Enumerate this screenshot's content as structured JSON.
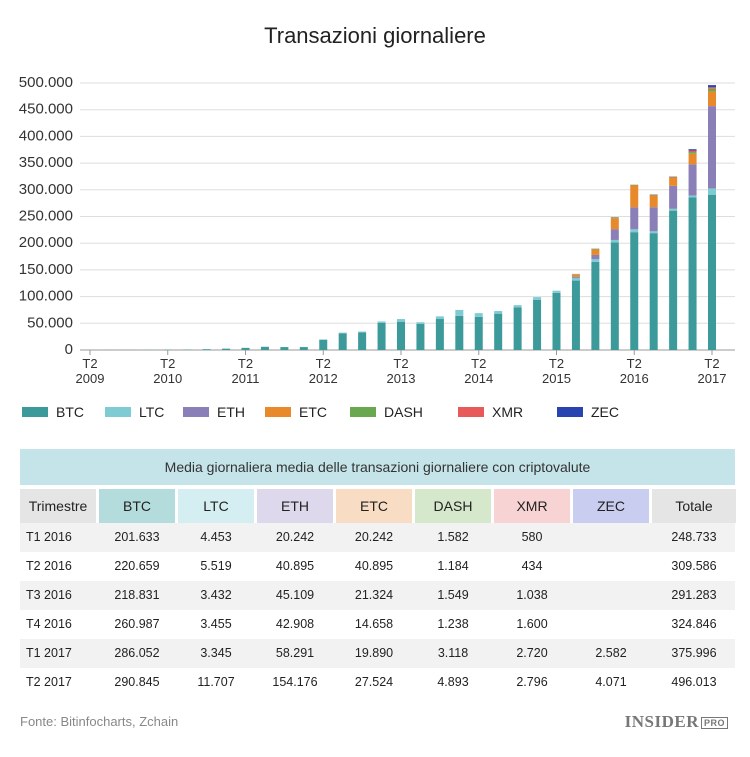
{
  "chart_data": {
    "type": "stacked_bar",
    "title": "Transazioni giornaliere",
    "categories": [
      "T2 2009",
      null,
      null,
      null,
      "T2 2010",
      null,
      null,
      null,
      "T2 2011",
      null,
      null,
      null,
      "T2 2012",
      null,
      null,
      null,
      "T2 2013",
      null,
      null,
      null,
      "T2 2014",
      null,
      null,
      null,
      "T2 2015",
      null,
      null,
      null,
      "T2 2016",
      null,
      null,
      null,
      "T2 2017"
    ],
    "series": [
      {
        "name": "BTC",
        "color": "#3c9a9a",
        "values": [
          100,
          150,
          200,
          300,
          500,
          800,
          1500,
          2500,
          4000,
          6000,
          5500,
          5500,
          19000,
          31000,
          33000,
          51000,
          53000,
          49000,
          58000,
          64000,
          62000,
          68000,
          80000,
          94000,
          107000,
          130000,
          165000,
          201633,
          220659,
          218831,
          260987,
          286052,
          290845
        ]
      },
      {
        "name": "LTC",
        "color": "#7fcbd3",
        "values": [
          null,
          null,
          null,
          null,
          null,
          null,
          null,
          null,
          null,
          null,
          100,
          300,
          1000,
          1500,
          1500,
          2500,
          5000,
          3000,
          5000,
          11000,
          7000,
          5000,
          4000,
          5000,
          4000,
          5000,
          5000,
          4453,
          5519,
          3432,
          3455,
          3345,
          11707
        ]
      },
      {
        "name": "ETH",
        "color": "#8a7fb6",
        "values": [
          null,
          null,
          null,
          null,
          null,
          null,
          null,
          null,
          null,
          null,
          null,
          null,
          null,
          null,
          null,
          null,
          null,
          null,
          null,
          null,
          null,
          null,
          null,
          null,
          null,
          2000,
          8000,
          20242,
          40895,
          45109,
          42908,
          58291,
          154176
        ]
      },
      {
        "name": "ETC",
        "color": "#e8892b",
        "values": [
          null,
          null,
          null,
          null,
          null,
          null,
          null,
          null,
          null,
          null,
          null,
          null,
          null,
          null,
          null,
          null,
          null,
          null,
          null,
          null,
          null,
          null,
          null,
          null,
          null,
          4000,
          10000,
          20242,
          40895,
          21324,
          14658,
          19890,
          27524
        ]
      },
      {
        "name": "DASH",
        "color": "#6aa84f",
        "values": [
          null,
          null,
          null,
          null,
          null,
          null,
          null,
          null,
          null,
          null,
          null,
          null,
          null,
          null,
          null,
          null,
          null,
          null,
          null,
          null,
          null,
          null,
          null,
          null,
          null,
          1000,
          1500,
          1582,
          1184,
          1549,
          1238,
          3118,
          4893
        ]
      },
      {
        "name": "XMR",
        "color": "#e85a5a",
        "values": [
          null,
          null,
          null,
          null,
          null,
          null,
          null,
          null,
          null,
          null,
          null,
          null,
          null,
          null,
          null,
          null,
          null,
          null,
          null,
          null,
          null,
          null,
          null,
          null,
          null,
          500,
          500,
          580,
          434,
          1038,
          1600,
          2720,
          2796
        ]
      },
      {
        "name": "ZEC",
        "color": "#2944b0",
        "values": [
          null,
          null,
          null,
          null,
          null,
          null,
          null,
          null,
          null,
          null,
          null,
          null,
          null,
          null,
          null,
          null,
          null,
          null,
          null,
          null,
          null,
          null,
          null,
          null,
          null,
          null,
          null,
          null,
          null,
          null,
          null,
          2582,
          4071
        ]
      }
    ],
    "ylim": [
      0,
      500000
    ],
    "yticks": [
      0,
      {
        "value": 50000,
        "label": "50.000"
      },
      {
        "value": 100000,
        "label": "100.000"
      },
      {
        "value": 150000,
        "label": "150.000"
      },
      {
        "value": 200000,
        "label": "200.000"
      },
      {
        "value": 250000,
        "label": "250.000"
      },
      {
        "value": 300000,
        "label": "300.000"
      },
      {
        "value": 350000,
        "label": "350.000"
      },
      {
        "value": 400000,
        "label": "400.000"
      },
      {
        "value": 450000,
        "label": "450.000"
      },
      {
        "value": 500000,
        "label": "500.000"
      }
    ],
    "grid": true
  },
  "table": {
    "title": "Media giornaliera media delle transazioni giornaliere con criptovalute",
    "columns": [
      "Trimestre",
      "BTC",
      "LTC",
      "ETH",
      "ETC",
      "DASH",
      "XMR",
      "ZEC",
      "Totale"
    ],
    "rows": [
      [
        "T1 2016",
        "201.633",
        "4.453",
        "20.242",
        "20.242",
        "1.582",
        "580",
        null,
        "248.733"
      ],
      [
        "T2 2016",
        "220.659",
        "5.519",
        "40.895",
        "40.895",
        "1.184",
        "434",
        null,
        "309.586"
      ],
      [
        "T3 2016",
        "218.831",
        "3.432",
        "45.109",
        "21.324",
        "1.549",
        "1.038",
        null,
        "291.283"
      ],
      [
        "T4 2016",
        "260.987",
        "3.455",
        "42.908",
        "14.658",
        "1.238",
        "1.600",
        null,
        "324.846"
      ],
      [
        "T1 2017",
        "286.052",
        "3.345",
        "58.291",
        "19.890",
        "3.118",
        "2.720",
        "2.582",
        "375.996"
      ],
      [
        "T2 2017",
        "290.845",
        "11.707",
        "154.176",
        "27.524",
        "4.893",
        "2.796",
        "4.071",
        "496.013"
      ]
    ]
  },
  "footer": {
    "source": "Fonte: Bitinfocharts, Zchain",
    "logo": "INSIDER",
    "logo_badge": "PRO"
  }
}
